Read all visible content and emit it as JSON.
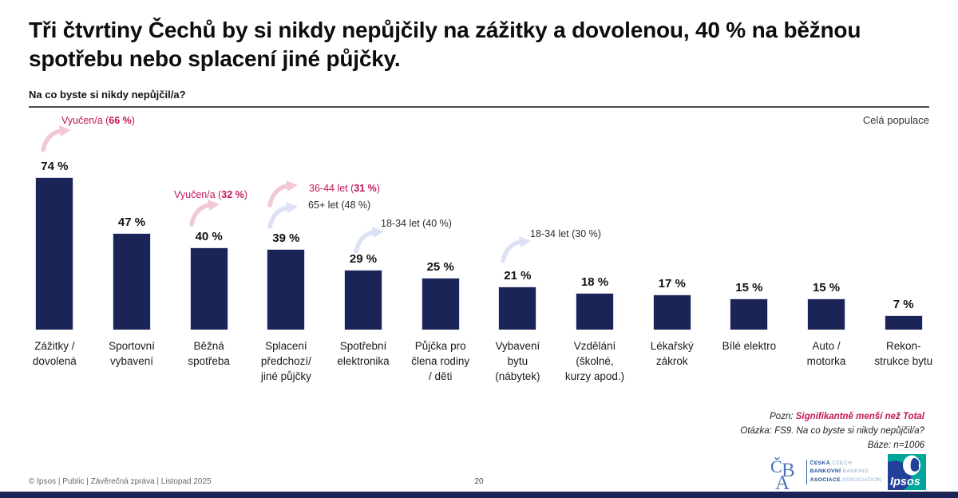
{
  "slide": {
    "title": "Tři čtvrtiny Čechů by si nikdy nepůjčily na zážitky a dovolenou, 40 % na běžnou spotřebu nebo splacení jiné půjčky.",
    "question": "Na co byste si nikdy nepůjčil/a?",
    "population_label": "Celá populace",
    "page_number": "20",
    "footer_left": "© Ipsos | Public | Závěrečná zpráva | Listopad 2025"
  },
  "chart_data": {
    "type": "bar",
    "title": "Na co byste si nikdy nepůjčil/a?",
    "unit": "%",
    "bar_color": "#1b2456",
    "ylim": [
      0,
      80
    ],
    "grid": false,
    "legend": false,
    "categories": [
      "Zážitky / dovolená",
      "Sportovní vybavení",
      "Běžná spotřeba",
      "Splacení předchozí/ jiné půjčky",
      "Spotřební elektronika",
      "Půjčka pro člena rodiny / děti",
      "Vybavení bytu (nábytek)",
      "Vzdělání (školné, kurzy apod.)",
      "Lékařský zákrok",
      "Bílé elektro",
      "Auto / motorka",
      "Rekon- strukce bytu"
    ],
    "category_lines": [
      [
        "Zážitky /",
        "dovolená"
      ],
      [
        "Sportovní",
        "vybavení"
      ],
      [
        "Běžná",
        "spotřeba"
      ],
      [
        "Splacení",
        "předchozí/",
        "jiné půjčky"
      ],
      [
        "Spotřební",
        "elektronika"
      ],
      [
        "Půjčka pro",
        "člena rodiny",
        "/ děti"
      ],
      [
        "Vybavení",
        "bytu",
        "(nábytek)"
      ],
      [
        "Vzdělání",
        "(školné,",
        "kurzy apod.)"
      ],
      [
        "Lékařský",
        "zákrok"
      ],
      [
        "Bílé elektro"
      ],
      [
        "Auto /",
        "motorka"
      ],
      [
        "Rekon-",
        "strukce bytu"
      ]
    ],
    "values": [
      74,
      47,
      40,
      39,
      29,
      25,
      21,
      18,
      17,
      15,
      15,
      7
    ],
    "value_labels": [
      "74 %",
      "47 %",
      "40 %",
      "39 %",
      "29 %",
      "25 %",
      "21 %",
      "18 %",
      "17 %",
      "15 %",
      "15 %",
      "7 %"
    ],
    "annotations": [
      {
        "prefix": "Vyučen/a (",
        "bold": "66 %",
        "suffix": ")",
        "tone": "pink",
        "arrow": "pink",
        "target_category": "Zážitky / dovolená"
      },
      {
        "prefix": "Vyučen/a (",
        "bold": "32 %",
        "suffix": ")",
        "tone": "pink",
        "arrow": "pink",
        "target_category": "Běžná spotřeba"
      },
      {
        "prefix": "36-44 let (",
        "bold": "31 %",
        "suffix": ")",
        "tone": "pink",
        "arrow": "pink",
        "target_category": "Splacení předchozí/ jiné půjčky"
      },
      {
        "prefix": "65+ let (48 %)",
        "bold": "",
        "suffix": "",
        "tone": "dark",
        "arrow": "lavender",
        "target_category": "Splacení předchozí/ jiné půjčky"
      },
      {
        "prefix": "18-34 let (40 %)",
        "bold": "",
        "suffix": "",
        "tone": "dark",
        "arrow": "lavender",
        "target_category": "Spotřební elektronika"
      },
      {
        "prefix": "18-34 let (30 %)",
        "bold": "",
        "suffix": "",
        "tone": "dark",
        "arrow": "lavender",
        "target_category": "Vybavení bytu (nábytek)"
      }
    ]
  },
  "notes": {
    "pozn_label": "Pozn: ",
    "pozn_highlight": "Signifikantně menší než Total",
    "otazka": "Otázka: FS9. Na co byste si nikdy nepůjčil/a?",
    "baze": "Báze: n=1006"
  },
  "logos": {
    "cba_monogram": "ČBA",
    "cba_lines": [
      {
        "bold": "ČESKÁ",
        "light": "CZECH"
      },
      {
        "bold": "BANKOVNÍ",
        "light": "BANKING"
      },
      {
        "bold": "ASOCIACE",
        "light": "ASSOCIATION"
      }
    ],
    "ipsos_label": "Ipsos"
  },
  "colors": {
    "bar": "#1b2456",
    "annotation_pink": "#c2175b",
    "arrow_pink": "#f2c7d6",
    "arrow_lavender": "#dde1f6",
    "rule": "#4d4d4d",
    "bottom_bar": "#1b2456"
  }
}
